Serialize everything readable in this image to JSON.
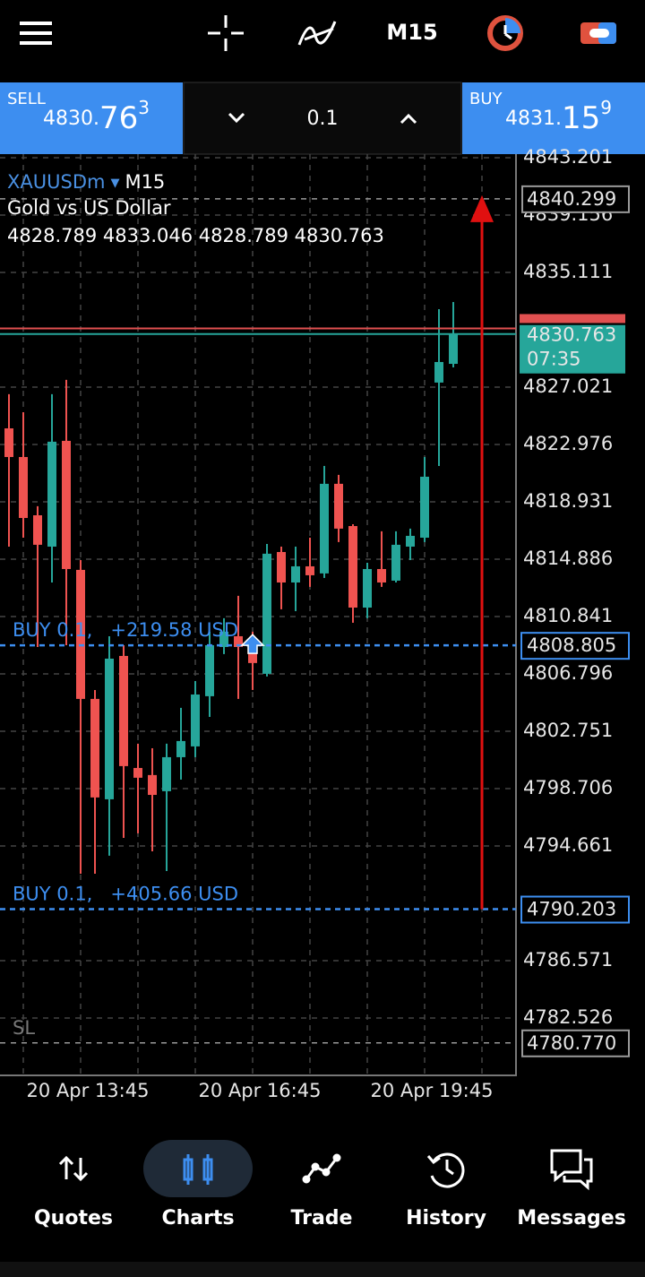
{
  "top_bar": {
    "timeframe": "M15"
  },
  "trade_panel": {
    "sell_label": "SELL",
    "sell_price_small": "4830.",
    "sell_price_big": "76",
    "sell_price_sup": "3",
    "volume": "0.1",
    "buy_label": "BUY",
    "buy_price_small": "4831.",
    "buy_price_big": "15",
    "buy_price_sup": "9"
  },
  "chart": {
    "symbol": "XAUUSDm",
    "timeframe": "M15",
    "description": "Gold vs US Dollar",
    "ohlc": "4828.789 4833.046 4828.789 4830.763",
    "ylim": [
      4778.48,
      4843.45
    ],
    "xlim": [
      -0.625,
      35.375
    ],
    "yticks": [
      4843.201,
      4839.156,
      4835.111,
      4827.021,
      4822.976,
      4818.931,
      4814.886,
      4810.841,
      4806.796,
      4802.751,
      4798.706,
      4794.661,
      4786.571,
      4782.526
    ],
    "xgrid": [
      1,
      5,
      9,
      13,
      17,
      21,
      25,
      29,
      33
    ],
    "xticks": [
      {
        "value": 5,
        "label": "20 Apr 13:45"
      },
      {
        "value": 17,
        "label": "20 Apr 16:45"
      },
      {
        "value": 29,
        "label": "20 Apr 19:45"
      }
    ],
    "up_color": "#26a69a",
    "down_color": "#ef5350",
    "open": [
      4824.11,
      4822.09,
      4817.98,
      4815.77,
      4823.23,
      4814.13,
      4805.03,
      4797.95,
      4808.06,
      4800.16,
      4799.66,
      4798.52,
      4800.92,
      4801.68,
      4805.22,
      4808.69,
      4809.45,
      4808.69,
      4806.8,
      4815.39,
      4813.24,
      4814.38,
      4813.88,
      4820.2,
      4817.22,
      4811.47,
      4814.19,
      4813.37,
      4815.77,
      4816.4,
      4827.34,
      4828.66
    ],
    "high": [
      4826.52,
      4825.25,
      4818.62,
      4826.52,
      4827.53,
      4814.82,
      4805.66,
      4809.45,
      4808.82,
      4801.87,
      4801.55,
      4801.87,
      4804.4,
      4806.29,
      4809.77,
      4810.72,
      4812.3,
      4809.77,
      4815.96,
      4815.77,
      4815.77,
      4816.4,
      4821.46,
      4820.83,
      4817.35,
      4814.63,
      4816.85,
      4816.85,
      4817.04,
      4822.09,
      4832.52,
      4833.02
    ],
    "low": [
      4815.77,
      4816.4,
      4808.69,
      4813.24,
      4808.82,
      4792.7,
      4792.7,
      4793.97,
      4795.23,
      4795.55,
      4794.28,
      4792.89,
      4799.34,
      4800.92,
      4803.76,
      4808.19,
      4805.03,
      4805.66,
      4806.61,
      4811.35,
      4811.22,
      4812.93,
      4813.56,
      4816.09,
      4810.4,
      4810.72,
      4812.93,
      4813.24,
      4814.82,
      4816.09,
      4821.46,
      4828.41
    ],
    "close": [
      4822.09,
      4817.79,
      4815.9,
      4823.17,
      4814.19,
      4805.03,
      4798.08,
      4807.87,
      4800.29,
      4799.47,
      4798.26,
      4800.92,
      4802.06,
      4805.34,
      4808.82,
      4809.77,
      4808.69,
      4807.56,
      4815.27,
      4813.24,
      4814.38,
      4813.75,
      4820.2,
      4817.04,
      4811.47,
      4814.19,
      4813.24,
      4815.9,
      4816.53,
      4820.7,
      4828.79,
      4830.75
    ],
    "ask": 4831.159,
    "bid": 4830.763,
    "bar_timer": "07:35",
    "take_profit": 4840.299,
    "stop_loss": {
      "price": {
        "value": 4780.77,
        "label": "4780.770"
      },
      "label": "SL"
    },
    "orders": [
      {
        "price": 4808.805,
        "label": "BUY 0.1,   +219.58 USD"
      },
      {
        "price": 4790.203,
        "label": "BUY 0.1,   +405.66 USD"
      }
    ]
  },
  "nav": [
    {
      "label": "Quotes"
    },
    {
      "label": "Charts"
    },
    {
      "label": "Trade"
    },
    {
      "label": "History"
    },
    {
      "label": "Messages"
    }
  ]
}
